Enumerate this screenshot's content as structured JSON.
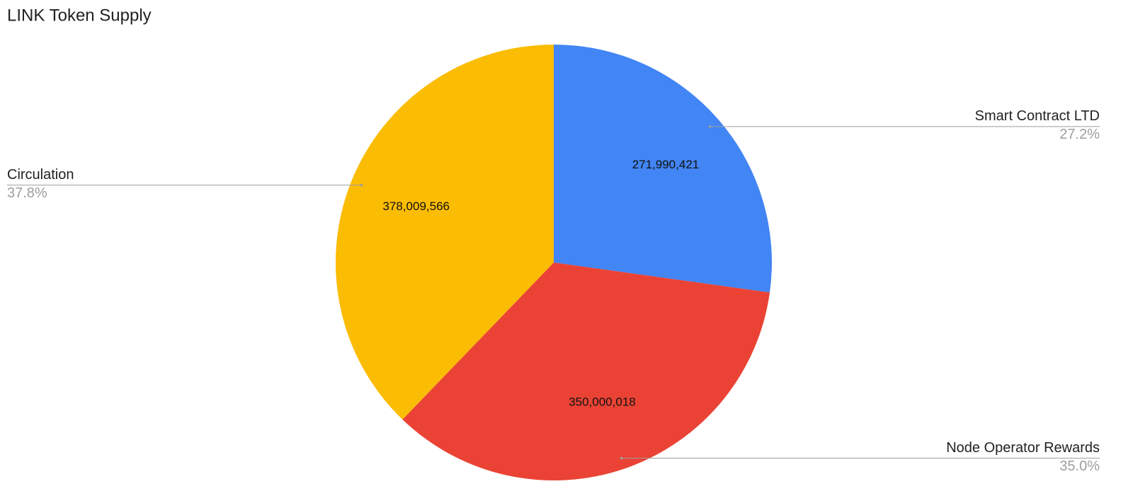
{
  "chart_data": {
    "type": "pie",
    "title": "LINK Token Supply",
    "categories": [
      "Smart Contract LTD",
      "Node Operator Rewards",
      "Circulation"
    ],
    "values": [
      271990421,
      350000018,
      378009566
    ],
    "value_labels": [
      "271,990,421",
      "350,000,018",
      "378,009,566"
    ],
    "percent_labels": [
      "27.2%",
      "35.0%",
      "37.8%"
    ],
    "colors": [
      "#4285f4",
      "#ea4335",
      "#fbbc04"
    ]
  }
}
